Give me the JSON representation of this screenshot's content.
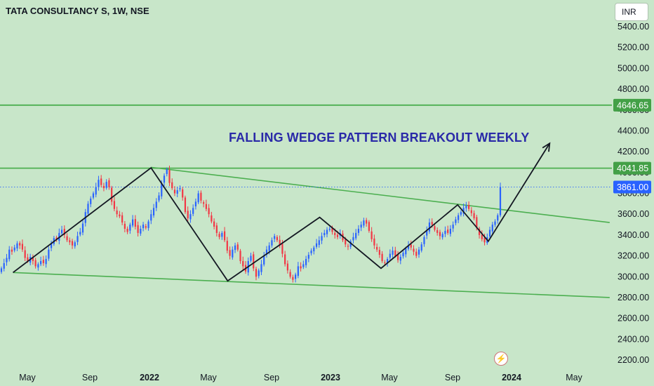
{
  "header": {
    "symbol": "TATA CONSULTANCY S, 1W, NSE",
    "currency": "INR"
  },
  "annotation": "FALLING WEDGE PATTERN BREAKOUT WEEKLY",
  "colors": {
    "background": "#c8e6c9",
    "up_candle": "#2962ff",
    "down_candle": "#f23645",
    "trend_lines": "#4caf50",
    "level_label": "#43a047",
    "last_price_label": "#2962ff",
    "zigzag": "#131722",
    "annotation": "#2a2aa8"
  },
  "chart_data": {
    "type": "candlestick",
    "y_axis": {
      "min": 2150,
      "max": 5550,
      "ticks": [
        "5400.00",
        "5200.00",
        "5000.00",
        "4800.00",
        "4600.00",
        "4400.00",
        "4200.00",
        "4000.00",
        "3800.00",
        "3600.00",
        "3400.00",
        "3200.00",
        "3000.00",
        "2800.00",
        "2600.00",
        "2400.00",
        "2200.00"
      ]
    },
    "x_axis": {
      "ticks": [
        {
          "label": "May",
          "bold": false
        },
        {
          "label": "Sep",
          "bold": false
        },
        {
          "label": "2022",
          "bold": true
        },
        {
          "label": "May",
          "bold": false
        },
        {
          "label": "Sep",
          "bold": false
        },
        {
          "label": "2023",
          "bold": true
        },
        {
          "label": "May",
          "bold": false
        },
        {
          "label": "Sep",
          "bold": false
        },
        {
          "label": "2024",
          "bold": true
        },
        {
          "label": "May",
          "bold": false
        }
      ]
    },
    "levels": [
      {
        "label": "4646.65",
        "value": 4646.65,
        "kind": "horizontal"
      },
      {
        "label": "4041.85",
        "value": 4041.85,
        "kind": "horizontal"
      },
      {
        "label": "3861.00",
        "value": 3861.0,
        "kind": "last-price"
      }
    ],
    "wedge_lines": {
      "upper": {
        "from": [
          "2022-01",
          4050
        ],
        "to": [
          "2024-06",
          3520
        ]
      },
      "lower": {
        "from": [
          "2021-04",
          3040
        ],
        "to": [
          "2024-06",
          2800
        ]
      }
    },
    "zigzag": [
      [
        "2021-04",
        3040
      ],
      [
        "2022-01",
        4045
      ],
      [
        "2022-06",
        2960
      ],
      [
        "2022-12",
        3570
      ],
      [
        "2023-04",
        3080
      ],
      [
        "2023-09",
        3690
      ],
      [
        "2023-11",
        3340
      ],
      [
        "2024-03",
        4280
      ]
    ],
    "candles": {
      "closes": [
        3080,
        3130,
        3180,
        3260,
        3240,
        3280,
        3320,
        3300,
        3260,
        3180,
        3150,
        3190,
        3150,
        3100,
        3120,
        3150,
        3130,
        3170,
        3260,
        3320,
        3370,
        3360,
        3420,
        3450,
        3400,
        3350,
        3330,
        3300,
        3330,
        3390,
        3430,
        3510,
        3620,
        3700,
        3750,
        3800,
        3860,
        3930,
        3880,
        3850,
        3910,
        3860,
        3720,
        3650,
        3600,
        3580,
        3520,
        3460,
        3430,
        3500,
        3550,
        3480,
        3420,
        3460,
        3500,
        3470,
        3530,
        3600,
        3660,
        3720,
        3780,
        3900,
        3970,
        4030,
        3900,
        3850,
        3800,
        3830,
        3850,
        3760,
        3620,
        3560,
        3600,
        3660,
        3720,
        3800,
        3730,
        3700,
        3650,
        3600,
        3530,
        3480,
        3420,
        3380,
        3420,
        3350,
        3250,
        3200,
        3260,
        3300,
        3260,
        3150,
        3100,
        3050,
        3150,
        3200,
        3080,
        3000,
        3060,
        3120,
        3200,
        3260,
        3300,
        3350,
        3390,
        3350,
        3300,
        3220,
        3120,
        3060,
        3000,
        2970,
        3020,
        3100,
        3080,
        3120,
        3170,
        3210,
        3250,
        3280,
        3320,
        3350,
        3390,
        3420,
        3450,
        3460,
        3430,
        3400,
        3380,
        3420,
        3350,
        3310,
        3290,
        3340,
        3380,
        3420,
        3460,
        3500,
        3540,
        3510,
        3440,
        3360,
        3300,
        3260,
        3210,
        3150,
        3130,
        3170,
        3220,
        3250,
        3200,
        3160,
        3190,
        3230,
        3270,
        3300,
        3280,
        3240,
        3200,
        3260,
        3310,
        3380,
        3440,
        3520,
        3500,
        3450,
        3420,
        3390,
        3410,
        3440,
        3420,
        3460,
        3500,
        3550,
        3590,
        3620,
        3660,
        3680,
        3650,
        3610,
        3560,
        3470,
        3400,
        3360,
        3330,
        3380,
        3450,
        3500,
        3530,
        3590,
        3861
      ]
    }
  }
}
